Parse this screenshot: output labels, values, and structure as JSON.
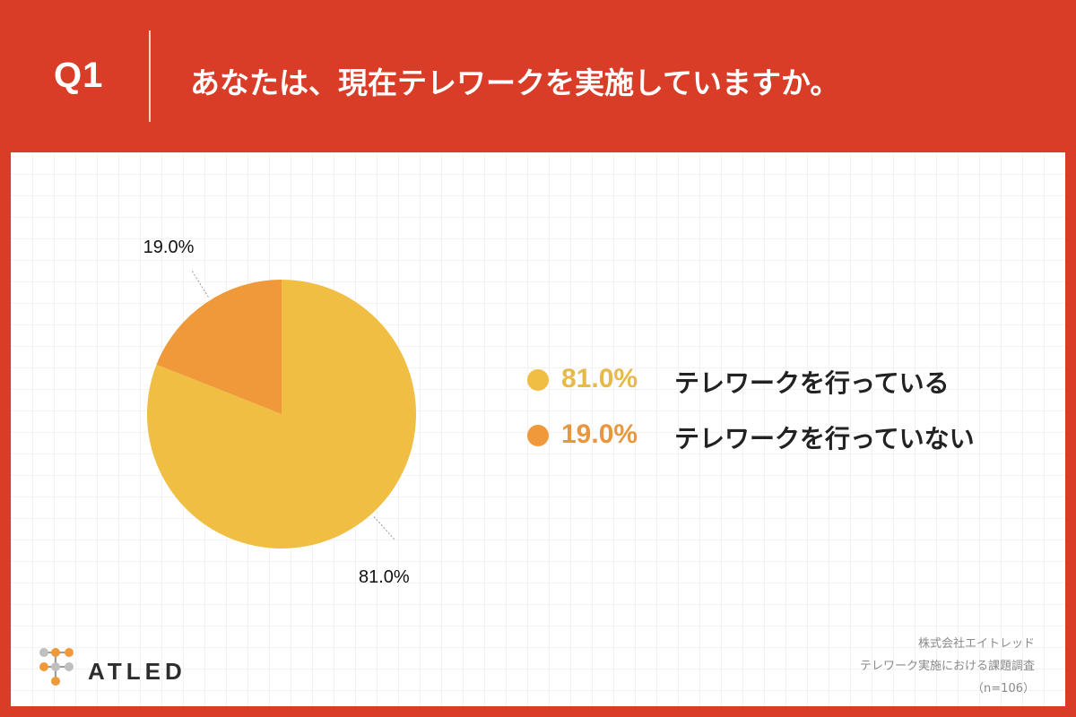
{
  "header": {
    "question_number": "Q1",
    "question": "あなたは、現在テレワークを実施していますか。"
  },
  "colors": {
    "background": "#d93d27",
    "slice_yes": "#efbe42",
    "slice_no": "#f0993a",
    "legend_pct_yes": "#e7b94a",
    "legend_pct_no": "#e9963c"
  },
  "chart_data": {
    "type": "pie",
    "title": "",
    "categories": [
      "テレワークを行っている",
      "テレワークを行っていない"
    ],
    "values": [
      81.0,
      19.0
    ],
    "value_labels": [
      "81.0%",
      "19.0%"
    ],
    "start_angle_deg": 0,
    "direction": "clockwise",
    "legend": {
      "position": "right",
      "items": [
        {
          "pct": "81.0%",
          "label": "テレワークを行っている",
          "color": "#efbe42"
        },
        {
          "pct": "19.0%",
          "label": "テレワークを行っていない",
          "color": "#f0993a"
        }
      ]
    }
  },
  "logo": {
    "text": "ATLED"
  },
  "credit": {
    "company": "株式会社エイトレッド",
    "survey": "テレワーク実施における課題調査",
    "sample": "（n=106）"
  }
}
